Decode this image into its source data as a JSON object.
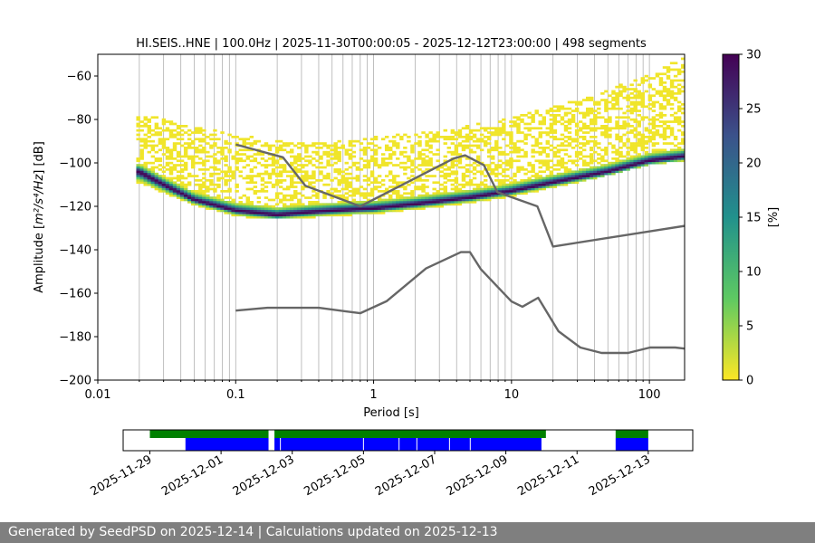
{
  "chart_data": [
    {
      "type": "heatmap",
      "title": "HI.SEIS..HNE | 100.0Hz | 2025-11-30T00:00:05 - 2025-12-12T23:00:00 | 498 segments",
      "xlabel": "Period [s]",
      "ylabel_prefix": "Amplitude [",
      "ylabel_math": "m²/s⁴/Hz",
      "ylabel_suffix": "] [dB]",
      "xscale": "log",
      "xlim": [
        0.01,
        180
      ],
      "ylim": [
        -200,
        -50
      ],
      "grid": "vertical lines at every log tick",
      "xticks": [
        {
          "value": 0.01,
          "label": "0.01"
        },
        {
          "value": 0.1,
          "label": "0.1"
        },
        {
          "value": 1,
          "label": "1"
        },
        {
          "value": 10,
          "label": "10"
        },
        {
          "value": 100,
          "label": "100"
        }
      ],
      "yticks": [
        {
          "value": -60,
          "label": "−60"
        },
        {
          "value": -80,
          "label": "−80"
        },
        {
          "value": -100,
          "label": "−100"
        },
        {
          "value": -120,
          "label": "−120"
        },
        {
          "value": -140,
          "label": "−140"
        },
        {
          "value": -160,
          "label": "−160"
        },
        {
          "value": -180,
          "label": "−180"
        },
        {
          "value": -200,
          "label": "−200"
        }
      ],
      "psd_mode_curve": {
        "period": [
          0.02,
          0.03,
          0.05,
          0.1,
          0.2,
          0.3,
          0.5,
          1,
          2,
          5,
          10,
          20,
          50,
          100,
          180
        ],
        "db": [
          -104,
          -110,
          -117,
          -122,
          -124,
          -123,
          -122,
          -121,
          -119,
          -116,
          -113,
          -109,
          -104,
          -99,
          -97
        ]
      },
      "psd_upper_envelope": {
        "period": [
          0.02,
          0.05,
          0.1,
          0.3,
          0.5,
          1,
          3,
          10,
          30,
          100,
          180
        ],
        "db": [
          -78,
          -84,
          -88,
          -92,
          -91,
          -89,
          -86,
          -80,
          -72,
          -60,
          -52
        ]
      },
      "psd_lower_envelope": {
        "period": [
          0.02,
          0.05,
          0.1,
          0.3,
          1,
          3,
          10,
          30,
          100,
          180
        ],
        "db": [
          -110,
          -120,
          -124,
          -125,
          -124,
          -120,
          -115,
          -108,
          -100,
          -98
        ]
      },
      "new_high_noise_model": {
        "period": [
          0.1,
          0.22,
          0.32,
          0.8,
          3.8,
          4.6,
          6.3,
          7.9,
          15.4,
          20,
          180
        ],
        "db": [
          -91.5,
          -97.4,
          -110.5,
          -120,
          -98,
          -96.5,
          -101,
          -113.5,
          -120,
          -138.5,
          -129
        ]
      },
      "new_low_noise_model": {
        "period": [
          0.1,
          0.17,
          0.4,
          0.8,
          1.24,
          2.4,
          4.3,
          5,
          6,
          10,
          12,
          15.6,
          21.9,
          31.6,
          45,
          70,
          101,
          154,
          180
        ],
        "db": [
          -168,
          -166.7,
          -166.7,
          -169.2,
          -163.7,
          -148.6,
          -141.1,
          -141.1,
          -149,
          -163.8,
          -166.2,
          -162.1,
          -177.5,
          -185,
          -187.5,
          -187.5,
          -185,
          -185,
          -185.5
        ]
      },
      "colorbar": {
        "label": "[%]",
        "min": 0,
        "max": 30,
        "ticks": [
          {
            "value": 0,
            "label": "0"
          },
          {
            "value": 5,
            "label": "5"
          },
          {
            "value": 10,
            "label": "10"
          },
          {
            "value": 15,
            "label": "15"
          },
          {
            "value": 20,
            "label": "20"
          },
          {
            "value": 25,
            "label": "25"
          },
          {
            "value": 30,
            "label": "30"
          }
        ],
        "colormap": [
          "#440154",
          "#3b528b",
          "#21918c",
          "#5ec962",
          "#fde725"
        ]
      },
      "colors": {
        "noise_model": "#666666",
        "grid": "#b0b0b0"
      }
    },
    {
      "type": "timeline",
      "xlim": [
        "2025-11-28T06:00",
        "2025-12-14T06:00"
      ],
      "date_ticks": [
        {
          "date": "2025-11-29",
          "label": "2025-11-29"
        },
        {
          "date": "2025-12-01",
          "label": "2025-12-01"
        },
        {
          "date": "2025-12-03",
          "label": "2025-12-03"
        },
        {
          "date": "2025-12-05",
          "label": "2025-12-05"
        },
        {
          "date": "2025-12-07",
          "label": "2025-12-07"
        },
        {
          "date": "2025-12-09",
          "label": "2025-12-09"
        },
        {
          "date": "2025-12-11",
          "label": "2025-12-11"
        },
        {
          "date": "2025-12-13",
          "label": "2025-12-13"
        }
      ],
      "data_available": [
        {
          "start": "2025-11-29T00:00",
          "end": "2025-12-02T08:00"
        },
        {
          "start": "2025-12-02T12:00",
          "end": "2025-12-10T03:00"
        },
        {
          "start": "2025-12-12T02:00",
          "end": "2025-12-13T00:00"
        }
      ],
      "psd_computed": [
        {
          "start": "2025-11-30T00:00",
          "end": "2025-12-02T08:00"
        },
        {
          "start": "2025-12-02T12:00",
          "end": "2025-12-10T00:00"
        },
        {
          "start": "2025-12-12T02:00",
          "end": "2025-12-13T00:00"
        }
      ],
      "segment_gaps": [
        "2025-12-02T16:00",
        "2025-12-05T00:00",
        "2025-12-06T00:00",
        "2025-12-06T12:00",
        "2025-12-07T10:00",
        "2025-12-08T00:00"
      ],
      "colors": {
        "available": "#008000",
        "computed": "#0000ff"
      }
    }
  ],
  "footer": {
    "text": "Generated by SeedPSD on 2025-12-14 | Calculations updated on 2025-12-13"
  }
}
